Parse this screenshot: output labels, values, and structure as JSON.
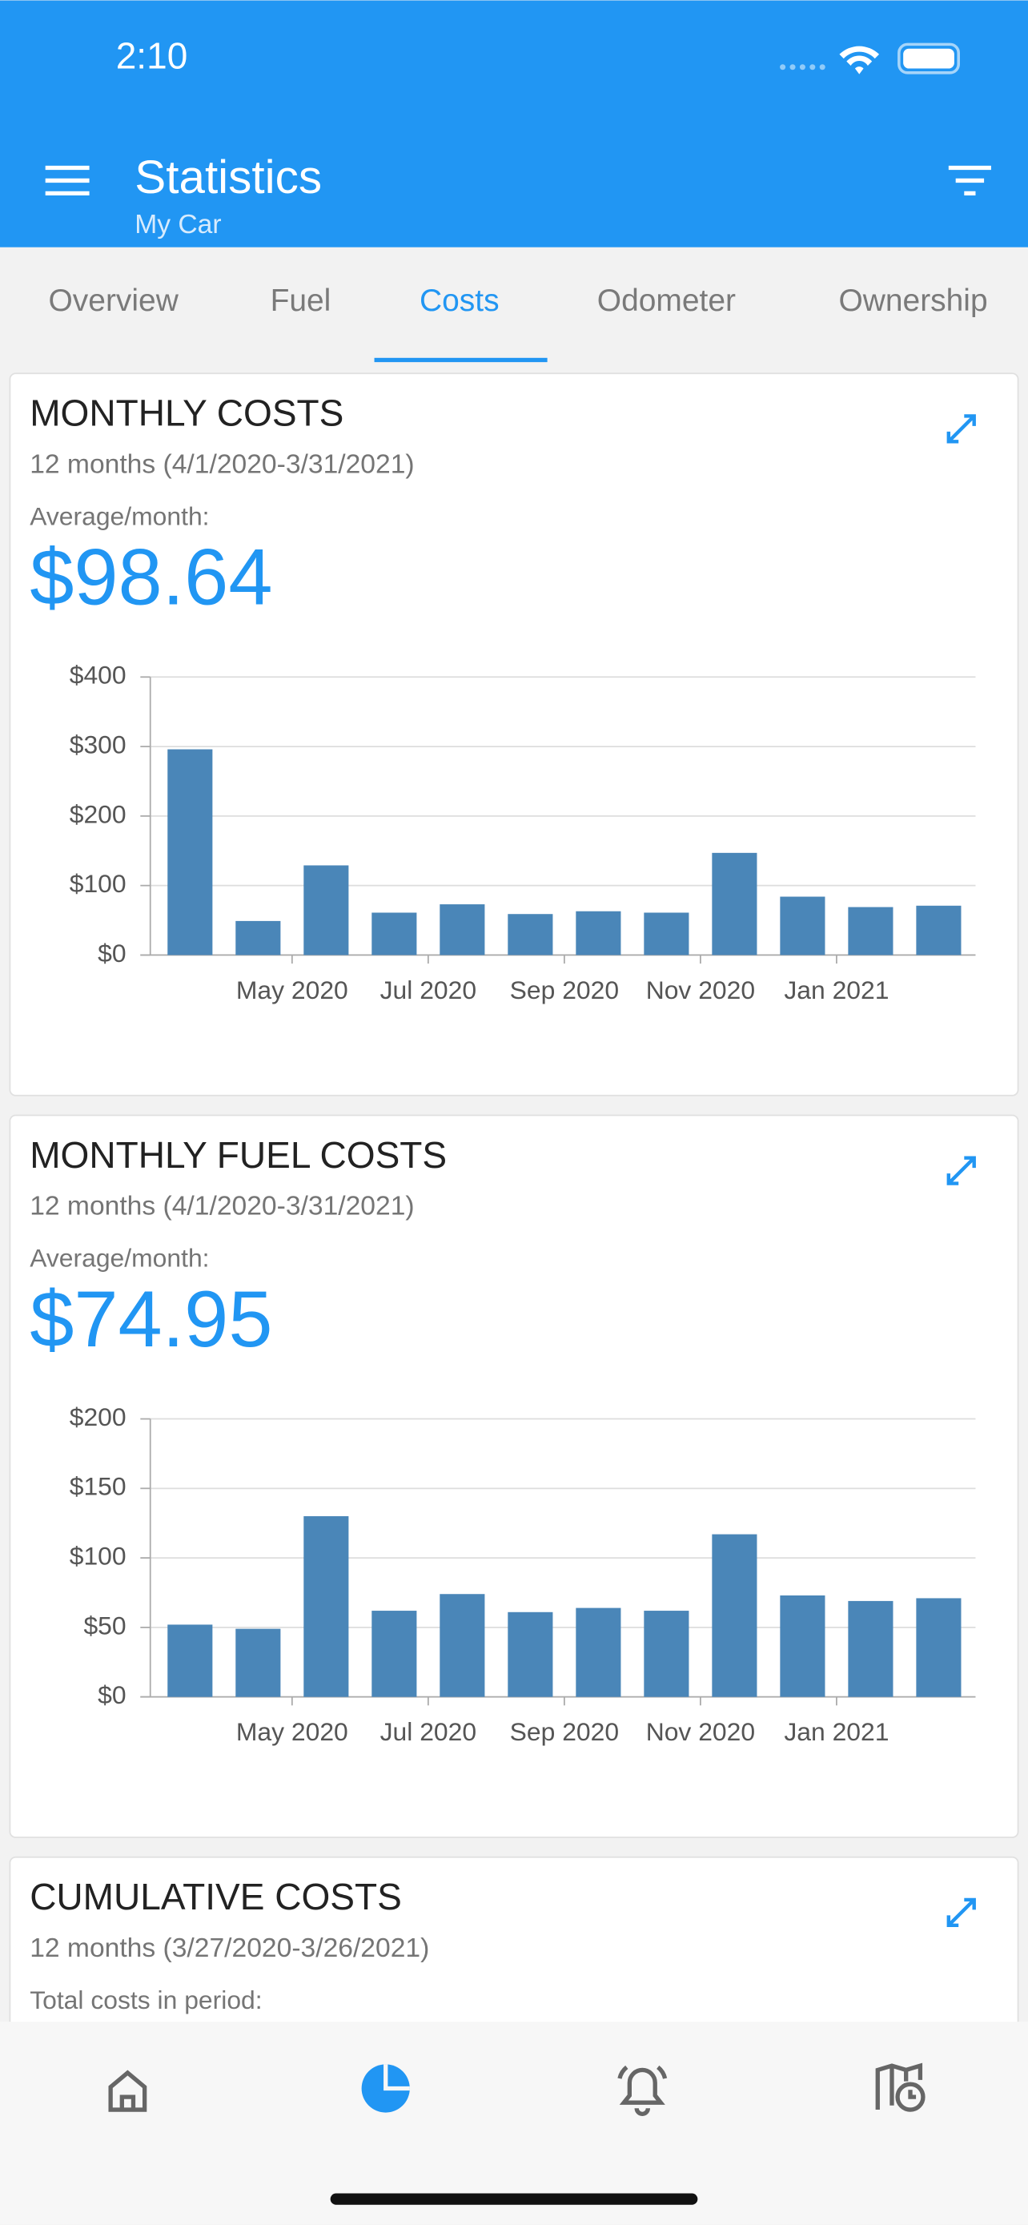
{
  "status_bar": {
    "time": "2:10"
  },
  "app_bar": {
    "title": "Statistics",
    "subtitle": "My Car"
  },
  "tabs": [
    "Overview",
    "Fuel",
    "Costs",
    "Odometer",
    "Ownership"
  ],
  "cards": [
    {
      "title": "MONTHLY COSTS",
      "period": "12 months (4/1/2020-3/31/2021)",
      "average_label": "Average/month:",
      "average_value": "$98.64"
    },
    {
      "title": "MONTHLY FUEL COSTS",
      "period": "12 months (4/1/2020-3/31/2021)",
      "average_label": "Average/month:",
      "average_value": "$74.95"
    },
    {
      "title": "CUMULATIVE COSTS",
      "period": "12 months (3/27/2020-3/26/2021)",
      "total_label": "Total costs in period:"
    }
  ],
  "chart_data": [
    {
      "type": "bar",
      "categories": [
        null,
        "May 2020",
        null,
        "Jul 2020",
        null,
        "Sep 2020",
        null,
        "Nov 2020",
        null,
        "Jan 2021",
        null,
        null
      ],
      "values": [
        296,
        49,
        129,
        61,
        73,
        59,
        63,
        61,
        147,
        84,
        69,
        71
      ],
      "color": "#4a86b8",
      "ylim": [
        0,
        400
      ],
      "yticks": [
        {
          "value": 0,
          "label": "$0"
        },
        {
          "value": 100,
          "label": "$100"
        },
        {
          "value": 200,
          "label": "$200"
        },
        {
          "value": 300,
          "label": "$300"
        },
        {
          "value": 400,
          "label": "$400"
        }
      ],
      "grid": true
    },
    {
      "type": "bar",
      "categories": [
        null,
        "May 2020",
        null,
        "Jul 2020",
        null,
        "Sep 2020",
        null,
        "Nov 2020",
        null,
        "Jan 2021",
        null,
        null
      ],
      "values": [
        52,
        49,
        130,
        62,
        74,
        61,
        64,
        62,
        117,
        73,
        69,
        71
      ],
      "color": "#4a86b8",
      "ylim": [
        0,
        200
      ],
      "yticks": [
        {
          "value": 0,
          "label": "$0"
        },
        {
          "value": 50,
          "label": "$50"
        },
        {
          "value": 100,
          "label": "$100"
        },
        {
          "value": 150,
          "label": "$150"
        },
        {
          "value": 200,
          "label": "$200"
        }
      ],
      "grid": true
    }
  ]
}
